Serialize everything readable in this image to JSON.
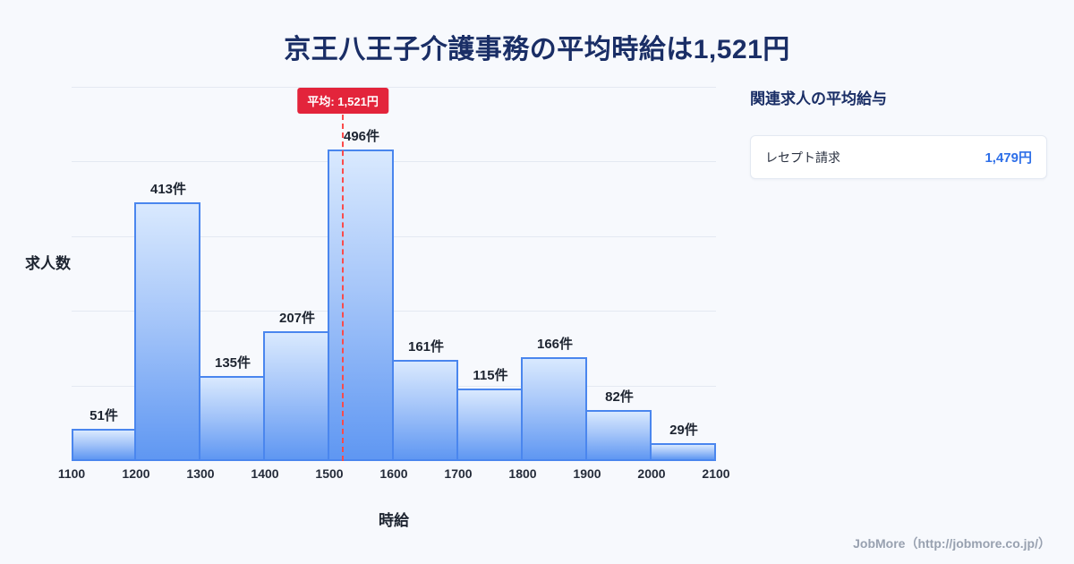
{
  "page": {
    "background": "#f7f9fd",
    "footer": "JobMore（http://jobmore.co.jp/）"
  },
  "chart_data": {
    "type": "bar",
    "title": "京王八王子介護事務の平均時給は1,521円",
    "xlabel": "時給",
    "ylabel": "求人数",
    "x_range": [
      1100,
      2100
    ],
    "bin_edges": [
      1100,
      1200,
      1300,
      1400,
      1500,
      1600,
      1700,
      1800,
      1900,
      2000,
      2100
    ],
    "x_tick_labels": [
      "1100",
      "1200",
      "1300",
      "1400",
      "1500",
      "1600",
      "1700",
      "1800",
      "1900",
      "2000",
      "2100"
    ],
    "values": [
      51,
      413,
      135,
      207,
      496,
      161,
      115,
      166,
      82,
      29
    ],
    "bar_labels": [
      "51件",
      "413件",
      "135件",
      "207件",
      "496件",
      "161件",
      "115件",
      "166件",
      "82件",
      "29件"
    ],
    "average": {
      "value": 1521,
      "label": "平均: 1,521円"
    },
    "ylim": [
      0,
      595
    ],
    "grid": true,
    "legend_position": "none"
  },
  "side_panel": {
    "heading": "関連求人の平均給与",
    "items": [
      {
        "label": "レセプト請求",
        "value": "1,479円"
      }
    ]
  },
  "colors": {
    "title_navy": "#1a2e66",
    "bar_fill_top": "#d9e9fe",
    "bar_fill_bottom": "#5f97f2",
    "bar_border": "#4a86ee",
    "average_red": "#e3243b",
    "average_line_red": "#fb4b4b",
    "value_blue": "#2e6fe8",
    "footer_gray": "#98a1b0"
  }
}
